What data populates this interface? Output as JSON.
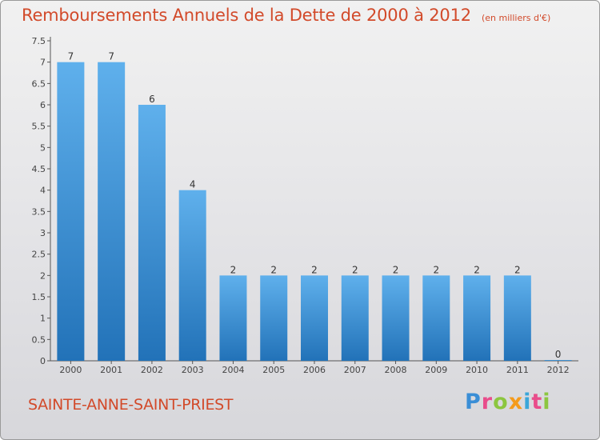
{
  "title": "Remboursements Annuels de la Dette de 2000 à 2012",
  "subtitle": "(en milliers d'€)",
  "town": "SAINTE-ANNE-SAINT-PRIEST",
  "brand": "Proxiti",
  "colors": {
    "title": "#d24a2a",
    "bar_top": "#5fb0ec",
    "bar_bottom": "#2272b8",
    "axis": "#555555"
  },
  "chart_data": {
    "type": "bar",
    "categories": [
      "2000",
      "2001",
      "2002",
      "2003",
      "2004",
      "2005",
      "2006",
      "2007",
      "2008",
      "2009",
      "2010",
      "2011",
      "2012"
    ],
    "values": [
      7,
      7,
      6,
      4,
      2,
      2,
      2,
      2,
      2,
      2,
      2,
      2,
      0
    ],
    "data_labels": [
      "7",
      "7",
      "6",
      "4",
      "2",
      "2",
      "2",
      "2",
      "2",
      "2",
      "2",
      "2",
      "0"
    ],
    "yticks": [
      "0",
      "0.5",
      "1",
      "1.5",
      "2",
      "2.5",
      "3",
      "3.5",
      "4",
      "4.5",
      "5",
      "5.5",
      "6",
      "6.5",
      "7",
      "7.5"
    ],
    "ylim": [
      0,
      7.5
    ],
    "grid": false
  }
}
